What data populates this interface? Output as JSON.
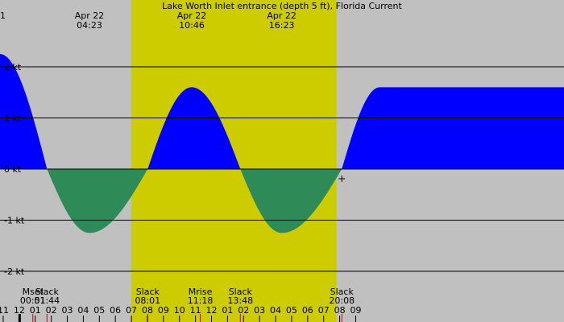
{
  "chart_data": {
    "type": "area",
    "title": "Lake Worth Inlet entrance (depth 5 ft), Florida Current",
    "xlabel": "",
    "ylabel": "",
    "x_unit": "hours after 00:00 Apr 22",
    "xlim": [
      -1.2,
      34.0
    ],
    "ylim": [
      -2.2,
      3.3
    ],
    "yticks": [
      {
        "value": 2,
        "label": "2 kt"
      },
      {
        "value": 1,
        "label": "1 kt"
      },
      {
        "value": 0,
        "label": "0 kt"
      },
      {
        "value": -1,
        "label": "-1 kt"
      },
      {
        "value": -2,
        "label": "-2 kt"
      }
    ],
    "curve": [
      {
        "time": -1.2,
        "speed": 2.25
      },
      {
        "time": 1.733,
        "speed": 0.0
      },
      {
        "time": 4.383,
        "speed": -1.25
      },
      {
        "time": 8.017,
        "speed": 0.0
      },
      {
        "time": 10.767,
        "speed": 1.6
      },
      {
        "time": 13.8,
        "speed": 0.0
      },
      {
        "time": 16.383,
        "speed": -1.25
      },
      {
        "time": 20.133,
        "speed": 0.0
      },
      {
        "time": 22.5,
        "speed": 1.6
      }
    ],
    "daylight": {
      "start": 7.0,
      "end": 19.8
    },
    "top_labels": [
      {
        "text": "1",
        "time": -1.2
      },
      {
        "text": "Apr 22",
        "sub": "04:23",
        "time": 4.383
      },
      {
        "text": "Apr 22",
        "sub": "10:46",
        "time": 10.767
      },
      {
        "text": "Apr 22",
        "sub": "16:23",
        "time": 16.383
      }
    ],
    "events": [
      {
        "label": "Mset",
        "time_text": "00:51",
        "time": 0.85,
        "color": "#cc0000"
      },
      {
        "label": "Slack",
        "time_text": "01:44",
        "time": 1.733,
        "color": "#cc0000"
      },
      {
        "label": "Slack",
        "time_text": "08:01",
        "time": 8.017,
        "color": "#cc0000"
      },
      {
        "label": "Mrise",
        "time_text": "11:18",
        "time": 11.3,
        "color": "#cc0000"
      },
      {
        "label": "Slack",
        "time_text": "13:48",
        "time": 13.8,
        "color": "#cc0000"
      },
      {
        "label": "Slack",
        "time_text": "20:08",
        "time": 20.133,
        "color": "#cc0000"
      }
    ],
    "hour_labels": [
      "11",
      "12",
      "01",
      "02",
      "03",
      "04",
      "05",
      "06",
      "07",
      "08",
      "09",
      "10",
      "11",
      "12",
      "01",
      "02",
      "03",
      "04",
      "05",
      "06",
      "07",
      "08",
      "09"
    ],
    "hour_start": -1,
    "midnight_time": 0,
    "now_marker_time": 20.133,
    "colors": {
      "night": "#c0c0c0",
      "day": "#cccc00",
      "flood": "#0000ff",
      "ebb": "#2e8b57",
      "grid": "#000000",
      "event_tick": "#cc0000"
    }
  }
}
